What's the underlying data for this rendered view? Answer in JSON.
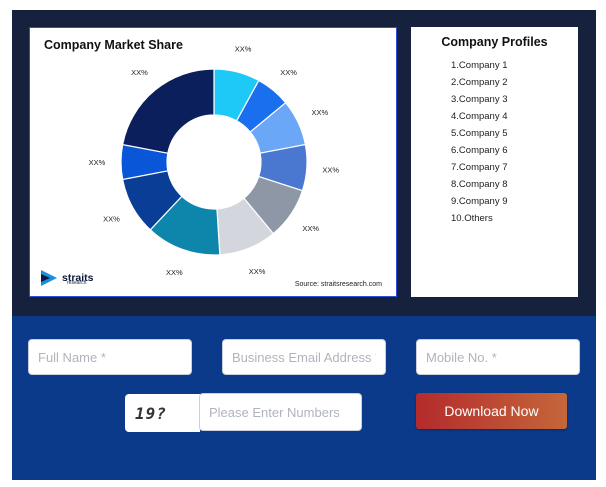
{
  "chart": {
    "title": "Company Market Share",
    "source": "Source: straitsresearch.com",
    "logo_text": "straits",
    "logo_subtext": "research"
  },
  "chart_data": {
    "type": "pie",
    "title": "Company Market Share",
    "categories": [
      "",
      "",
      "",
      "",
      "",
      "",
      "",
      "",
      "",
      ""
    ],
    "values": [
      8,
      6,
      8,
      8,
      9,
      10,
      13,
      10,
      6,
      22
    ],
    "data_labels": [
      "XX%",
      "XX%",
      "XX%",
      "XX%",
      "XX%",
      "XX%",
      "XX%",
      "XX%",
      "XX%",
      "XX%"
    ],
    "colors": [
      "#1ec8f7",
      "#1a6fee",
      "#6aa7f7",
      "#4a78d1",
      "#8d97a5",
      "#d3d6dc",
      "#0e86ab",
      "#0a3e96",
      "#0a56d9",
      "#0a1f5c"
    ],
    "donut": true
  },
  "profiles": {
    "title": "Company Profiles",
    "items": [
      "1.Company 1",
      "2.Company 2",
      "3.Company 3",
      "4.Company 4",
      "5.Company 5",
      "6.Company 6",
      "7.Company 7",
      "8.Company 8",
      "9.Company 9",
      "10.Others"
    ]
  },
  "form": {
    "full_name_placeholder": "Full Name *",
    "email_placeholder": "Business Email Address *",
    "mobile_placeholder": "Mobile No. *",
    "captcha_text": "19?",
    "captcha_placeholder": "Please Enter Numbers",
    "download_label": "Download Now"
  }
}
